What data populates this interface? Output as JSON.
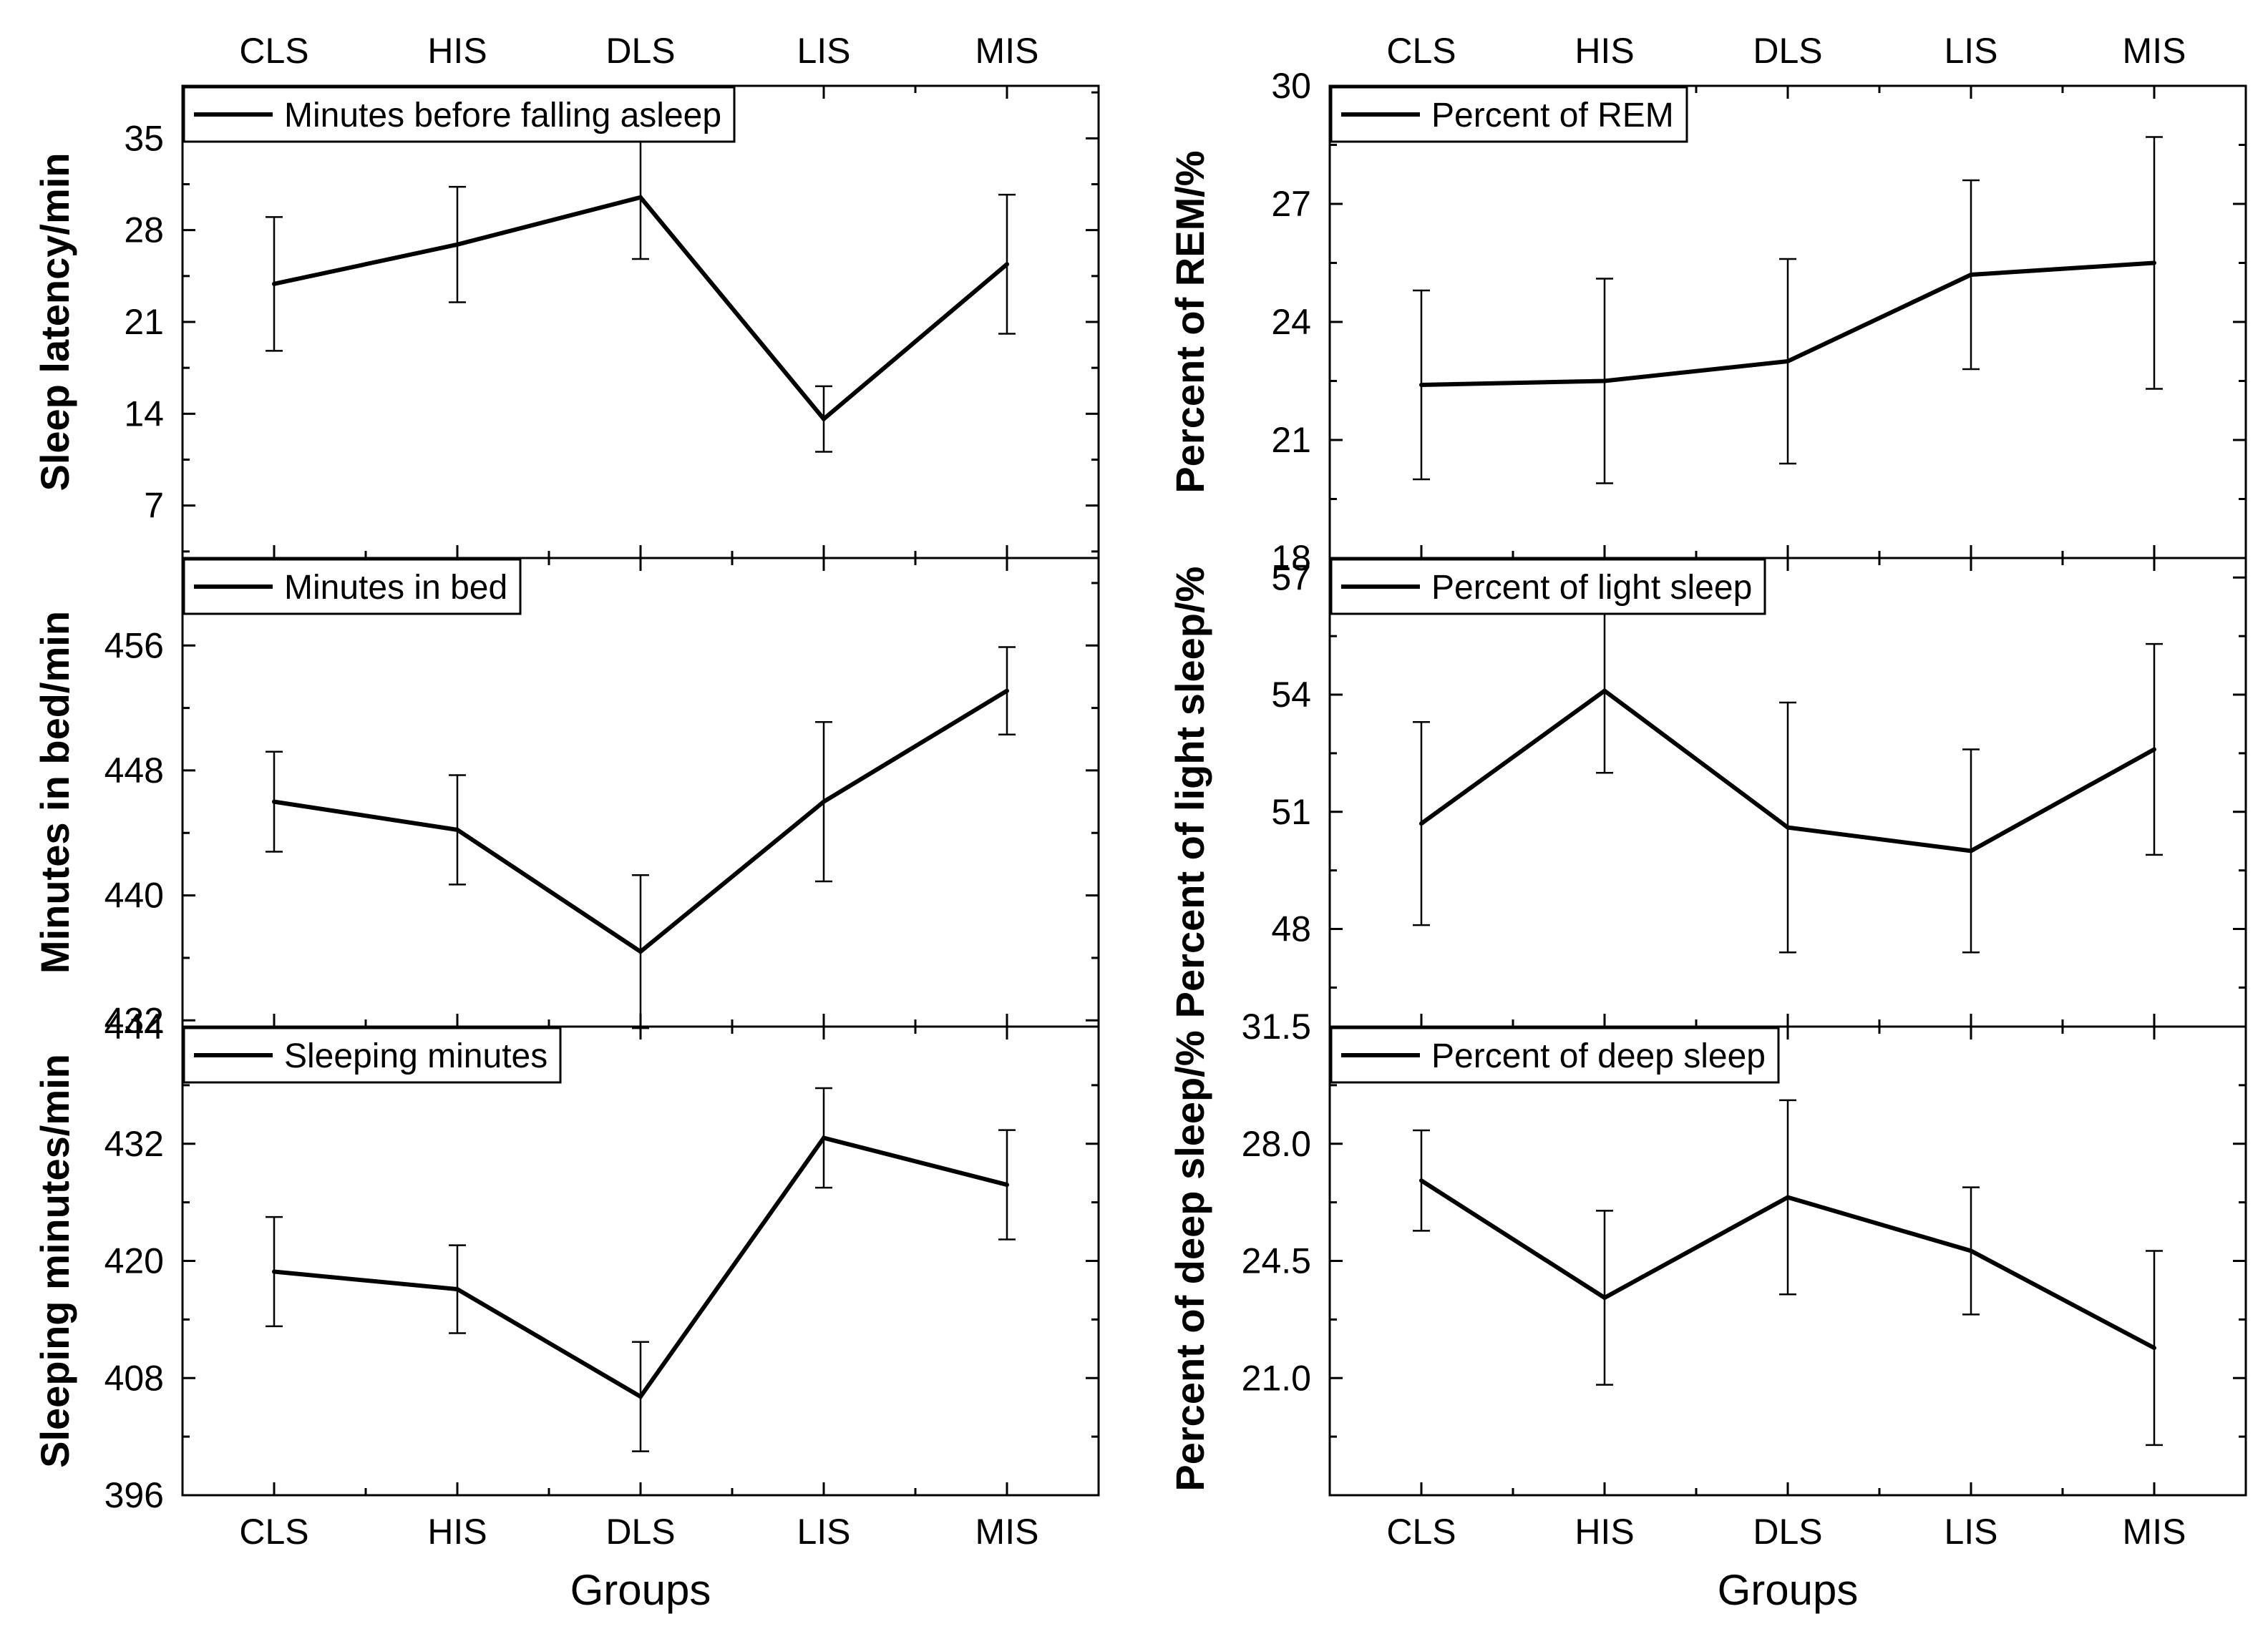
{
  "colors": {
    "line": "#000000",
    "background": "#ffffff",
    "frame": "#000000"
  },
  "chart_data": [
    {
      "type": "line",
      "column": "left",
      "row": 0,
      "legend": "Minutes before falling asleep",
      "ylabel": "Sleep latency/min",
      "xlabel": "",
      "categories": [
        "CLS",
        "HIS",
        "DLS",
        "LIS",
        "MIS"
      ],
      "values": [
        23.9,
        26.9,
        30.5,
        13.6,
        25.4
      ],
      "error": [
        5.1,
        4.4,
        4.7,
        2.5,
        5.3
      ],
      "ylim": [
        3,
        39
      ],
      "yticks": [
        7,
        14,
        21,
        28,
        35
      ],
      "ytick_labels": [
        "7",
        "14",
        "21",
        "28",
        "35"
      ],
      "top_categories": [
        "CLS",
        "HIS",
        "DLS",
        "LIS",
        "MIS"
      ]
    },
    {
      "type": "line",
      "column": "left",
      "row": 1,
      "legend": "Minutes in bed",
      "ylabel": "Minutes in bed/min",
      "xlabel": "",
      "categories": [
        "CLS",
        "HIS",
        "DLS",
        "LIS",
        "MIS"
      ],
      "values": [
        446.0,
        444.2,
        436.4,
        446.0,
        453.1
      ],
      "error": [
        3.2,
        3.5,
        4.9,
        5.1,
        2.8
      ],
      "ylim": [
        431.6,
        461.6
      ],
      "yticks": [
        432,
        440,
        448,
        456
      ],
      "ytick_labels": [
        "432",
        "440",
        "448",
        "456"
      ]
    },
    {
      "type": "line",
      "column": "left",
      "row": 2,
      "legend": "Sleeping minutes",
      "ylabel": "Sleeping minutes/min",
      "xlabel": "Groups",
      "categories": [
        "CLS",
        "HIS",
        "DLS",
        "LIS",
        "MIS"
      ],
      "values": [
        418.9,
        417.1,
        406.1,
        432.6,
        427.8
      ],
      "error": [
        5.6,
        4.5,
        5.6,
        5.1,
        5.6
      ],
      "ylim": [
        396,
        444
      ],
      "yticks": [
        396,
        408,
        420,
        432,
        444
      ],
      "ytick_labels": [
        "396",
        "408",
        "420",
        "432",
        "444"
      ]
    },
    {
      "type": "line",
      "column": "right",
      "row": 0,
      "legend": "Percent of REM",
      "ylabel": "Percent of REM/%",
      "xlabel": "",
      "categories": [
        "CLS",
        "HIS",
        "DLS",
        "LIS",
        "MIS"
      ],
      "values": [
        22.4,
        22.5,
        23.0,
        25.2,
        25.5
      ],
      "error": [
        2.4,
        2.6,
        2.6,
        2.4,
        3.2
      ],
      "ylim": [
        18,
        30
      ],
      "yticks": [
        18,
        21,
        24,
        27,
        30
      ],
      "ytick_labels": [
        "18",
        "21",
        "24",
        "27",
        "30"
      ],
      "top_categories": [
        "CLS",
        "HIS",
        "DLS",
        "LIS",
        "MIS"
      ]
    },
    {
      "type": "line",
      "column": "right",
      "row": 1,
      "legend": "Percent of light sleep",
      "ylabel": "Percent of light sleep/%",
      "xlabel": "",
      "categories": [
        "CLS",
        "HIS",
        "DLS",
        "LIS",
        "MIS"
      ],
      "values": [
        50.7,
        54.1,
        50.6,
        50.0,
        52.6
      ],
      "error": [
        2.6,
        2.1,
        3.2,
        2.6,
        2.7
      ],
      "ylim": [
        45.5,
        57.5
      ],
      "yticks": [
        48,
        51,
        54,
        57
      ],
      "ytick_labels": [
        "48",
        "51",
        "54",
        "57"
      ]
    },
    {
      "type": "line",
      "column": "right",
      "row": 2,
      "legend": "Percent of deep sleep",
      "ylabel": "Percent of deep sleep/%",
      "xlabel": "Groups",
      "categories": [
        "CLS",
        "HIS",
        "DLS",
        "LIS",
        "MIS"
      ],
      "values": [
        26.9,
        23.4,
        26.4,
        24.8,
        21.9
      ],
      "error": [
        1.5,
        2.6,
        2.9,
        1.9,
        2.9
      ],
      "ylim": [
        17.5,
        31.5
      ],
      "yticks": [
        21.0,
        24.5,
        28.0,
        31.5
      ],
      "ytick_labels": [
        "21.0",
        "24.5",
        "28.0",
        "31.5"
      ]
    }
  ]
}
